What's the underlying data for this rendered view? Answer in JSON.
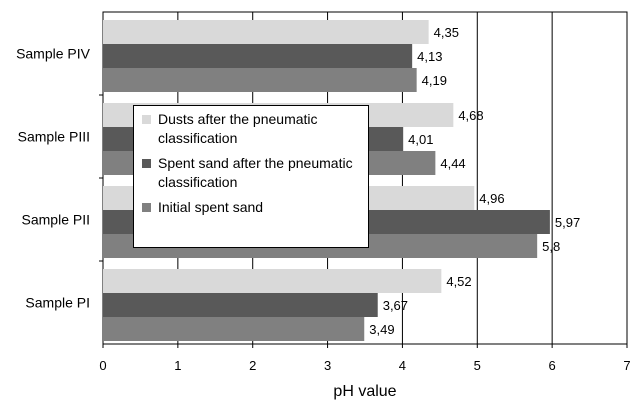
{
  "chart_data": {
    "type": "bar",
    "orientation": "horizontal",
    "categories": [
      "Sample PIV",
      "Sample PIII",
      "Sample PII",
      "Sample PI"
    ],
    "series": [
      {
        "name": "Dusts after the pneumatic classification",
        "values": [
          4.35,
          4.68,
          4.96,
          4.52
        ],
        "labels": [
          "4,35",
          "4,68",
          "4,96",
          "4,52"
        ],
        "color": "#d9d9d9"
      },
      {
        "name": "Spent sand after the pneumatic classification",
        "values": [
          4.13,
          4.01,
          5.97,
          3.67
        ],
        "labels": [
          "4,13",
          "4,01",
          "5,97",
          "3,67"
        ],
        "color": "#595959"
      },
      {
        "name": "Initial spent sand",
        "values": [
          4.19,
          4.44,
          5.8,
          3.49
        ],
        "labels": [
          "4,19",
          "4,44",
          "5,8",
          "3,49"
        ],
        "color": "#808080"
      }
    ],
    "xlabel": "pH value",
    "xlim": [
      0,
      7
    ],
    "xticks": [
      "0",
      "1",
      "2",
      "3",
      "4",
      "5",
      "6",
      "7"
    ],
    "grid": "vertical",
    "legend": "overlay-center-left"
  }
}
